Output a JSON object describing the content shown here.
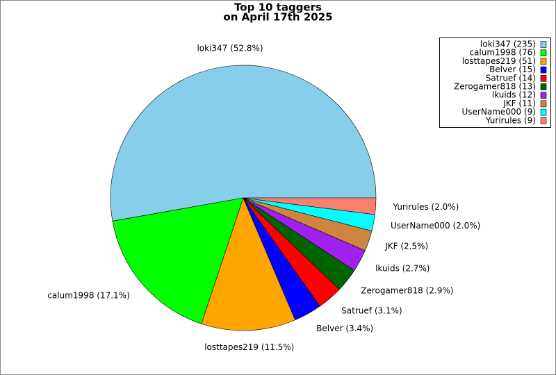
{
  "chart_data": {
    "type": "pie",
    "title": [
      "Top 10 taggers",
      "on April 17th 2025"
    ],
    "categories": [
      "loki347 (235)",
      "calum1998 (76)",
      "losttapes219 (51)",
      "Belver (15)",
      "Satruef (14)",
      "Zerogamer818 (13)",
      "lkuids (12)",
      "JKF (11)",
      "UserName000 (9)",
      "Yurirules (9)"
    ],
    "values": [
      52.8,
      17.1,
      11.5,
      3.4,
      3.1,
      2.9,
      2.7,
      2.5,
      2.0,
      2.0
    ],
    "value_labels": [
      "loki347 (52.8%)",
      "calum1998 (17.1%)",
      "losttapes219 (11.5%)",
      "Belver (3.4%)",
      "Satruef (3.1%)",
      "Zerogamer818 (2.9%)",
      "lkuids (2.7%)",
      "JKF (2.5%)",
      "UserName000 (2.0%)",
      "Yurirules (2.0%)"
    ],
    "colors": [
      "#87ceeb",
      "#00ff00",
      "#ffa500",
      "#0000ff",
      "#ff0000",
      "#006400",
      "#a020f0",
      "#cd853f",
      "#00ffff",
      "#fa8072"
    ],
    "legend": "upper right"
  }
}
